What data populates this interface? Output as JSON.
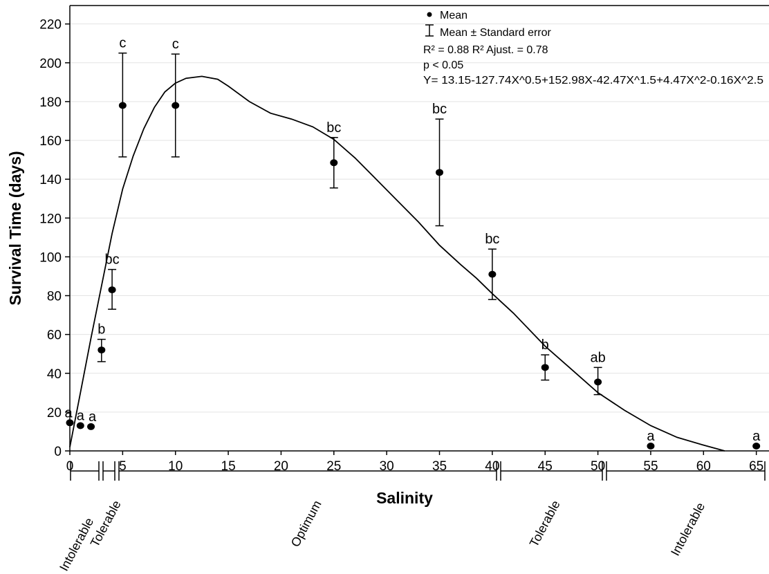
{
  "chart_data": {
    "type": "scatter",
    "ylabel": "Survival Time (days)",
    "xlabel": "Salinity",
    "xlim": [
      0,
      65
    ],
    "ylim": [
      0,
      220
    ],
    "y_ticks": [
      0,
      20,
      40,
      60,
      80,
      100,
      120,
      140,
      160,
      180,
      200,
      220
    ],
    "x_tick_labels": [
      "0",
      "5",
      "10",
      "15",
      "20",
      "25",
      "30",
      "35",
      "40",
      "45",
      "50",
      "55",
      "60",
      "65"
    ],
    "grid": "horizontal",
    "legend": {
      "mean_label": "Mean",
      "se_label": "Mean ± Standard error",
      "r2_text": "R² = 0.88  R² Ajust. = 0.78",
      "p_text": "p < 0.05",
      "equation_text": "Y= 13.15-127.74X^0.5+152.98X-42.47X^1.5+4.47X^2-0.16X^2.5"
    },
    "points": [
      {
        "x": 0,
        "y": 14.5,
        "se_low": 14.5,
        "se_high": 14.5,
        "letter": "a"
      },
      {
        "x": 1,
        "y": 13,
        "se_low": 13,
        "se_high": 13,
        "letter": "a"
      },
      {
        "x": 2,
        "y": 12.5,
        "se_low": 12.5,
        "se_high": 12.5,
        "letter": "a"
      },
      {
        "x": 3,
        "y": 52,
        "se_low": 46,
        "se_high": 57.5,
        "letter": "b"
      },
      {
        "x": 4,
        "y": 83,
        "se_low": 73,
        "se_high": 93.5,
        "letter": "bc"
      },
      {
        "x": 5,
        "y": 178,
        "se_low": 151.5,
        "se_high": 205,
        "letter": "c"
      },
      {
        "x": 10,
        "y": 178,
        "se_low": 151.5,
        "se_high": 204.5,
        "letter": "c"
      },
      {
        "x": 25,
        "y": 148.5,
        "se_low": 135.5,
        "se_high": 161.5,
        "letter": "bc"
      },
      {
        "x": 35,
        "y": 143.5,
        "se_low": 116,
        "se_high": 171,
        "letter": "bc"
      },
      {
        "x": 40,
        "y": 91,
        "se_low": 78,
        "se_high": 104,
        "letter": "bc"
      },
      {
        "x": 45,
        "y": 43,
        "se_low": 36.5,
        "se_high": 49.5,
        "letter": "b"
      },
      {
        "x": 50,
        "y": 35.5,
        "se_low": 29,
        "se_high": 43,
        "letter": "ab"
      },
      {
        "x": 55,
        "y": 2.5,
        "se_low": 2.5,
        "se_high": 2.5,
        "letter": "a"
      },
      {
        "x": 65,
        "y": 2.5,
        "se_low": 2.5,
        "se_high": 2.5,
        "letter": "a"
      }
    ],
    "fit_coefficients": [
      13.15,
      -127.74,
      152.98,
      -42.47,
      4.47,
      -0.16
    ],
    "zones": [
      {
        "label": "Intolerable"
      },
      {
        "label": "Tolerable"
      },
      {
        "label": "Optimum"
      },
      {
        "label": "Tolerable"
      },
      {
        "label": "Intolerable"
      }
    ]
  }
}
